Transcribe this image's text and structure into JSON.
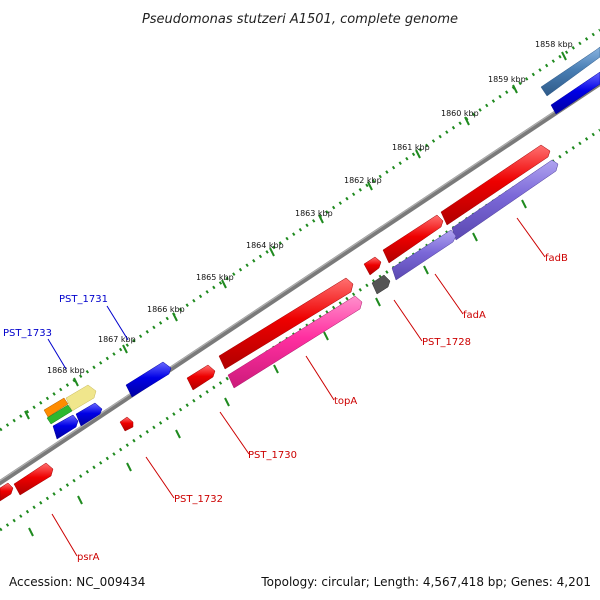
{
  "title": "Pseudomonas stutzeri A1501, complete genome",
  "footer": {
    "accession": "Accession: NC_009434",
    "summary": "Topology: circular; Length: 4,567,418 bp; Genes: 4,201"
  },
  "ticks": [
    "1858 kbp",
    "1859 kbp",
    "1860 kbp",
    "1861 kbp",
    "1862 kbp",
    "1863 kbp",
    "1864 kbp",
    "1865 kbp",
    "1866 kbp",
    "1867 kbp",
    "1868 kbp"
  ],
  "labels": [
    {
      "id": "fadB",
      "text": "fadB",
      "color": "#cc0000"
    },
    {
      "id": "fadA",
      "text": "fadA",
      "color": "#cc0000"
    },
    {
      "id": "pst1728",
      "text": "PST_1728",
      "color": "#cc0000"
    },
    {
      "id": "topA",
      "text": "topA",
      "color": "#cc0000"
    },
    {
      "id": "pst1730",
      "text": "PST_1730",
      "color": "#cc0000"
    },
    {
      "id": "pst1732",
      "text": "PST_1732",
      "color": "#cc0000"
    },
    {
      "id": "psrA",
      "text": "psrA",
      "color": "#cc0000"
    },
    {
      "id": "pst1731",
      "text": "PST_1731",
      "color": "#0000cc"
    },
    {
      "id": "pst1733",
      "text": "PST_1733",
      "color": "#0000cc"
    }
  ],
  "colors": {
    "backbone": "#8a8a8a",
    "tick": "#1f8a1f",
    "red_gene": "#ee0000",
    "pink_gene": "#ff2fa0",
    "purple_gene": "#7b68d8",
    "blue_gene": "#0000e6",
    "steel_gene": "#4a7fb5",
    "gray_gene": "#555555"
  }
}
